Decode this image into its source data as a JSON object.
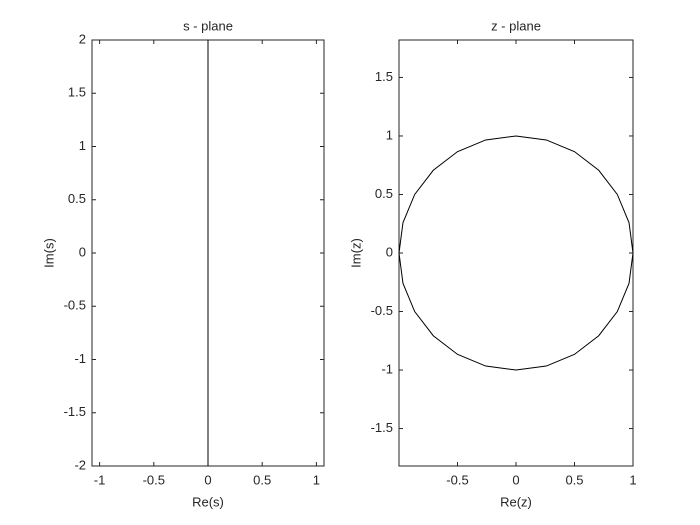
{
  "chart_data": [
    {
      "type": "line",
      "title": "s - plane",
      "xlabel": "Re(s)",
      "ylabel": "Im(s)",
      "xlim": [
        -1.07,
        1.07
      ],
      "ylim": [
        -2,
        2
      ],
      "xticks": [
        -1,
        -0.5,
        0,
        0.5,
        1
      ],
      "yticks": [
        -2,
        -1.5,
        -1,
        -0.5,
        0,
        0.5,
        1,
        1.5,
        2
      ],
      "series": [
        {
          "color": "#000000",
          "x": [
            0,
            0
          ],
          "values": [
            -2,
            2
          ]
        }
      ]
    },
    {
      "type": "line",
      "title": "z - plane",
      "xlabel": "Re(z)",
      "ylabel": "Im(z)",
      "xlim": [
        -1,
        1
      ],
      "ylim": [
        -1.82,
        1.82
      ],
      "xticks": [
        -0.5,
        0,
        0.5,
        1
      ],
      "yticks": [
        -1.5,
        -1,
        -0.5,
        0,
        0.5,
        1,
        1.5
      ],
      "series": [
        {
          "color": "#000000",
          "x": [
            1,
            0.966,
            0.866,
            0.707,
            0.5,
            0.259,
            0,
            -0.259,
            -0.5,
            -0.707,
            -0.866,
            -0.966,
            -1,
            -0.966,
            -0.866,
            -0.707,
            -0.5,
            -0.259,
            0,
            0.259,
            0.5,
            0.707,
            0.866,
            0.966,
            1
          ],
          "values": [
            0,
            0.259,
            0.5,
            0.707,
            0.866,
            0.966,
            1,
            0.966,
            0.866,
            0.707,
            0.5,
            0.259,
            0,
            -0.259,
            -0.5,
            -0.707,
            -0.866,
            -0.966,
            -1,
            -0.966,
            -0.866,
            -0.707,
            -0.5,
            -0.259,
            0
          ]
        }
      ]
    }
  ]
}
